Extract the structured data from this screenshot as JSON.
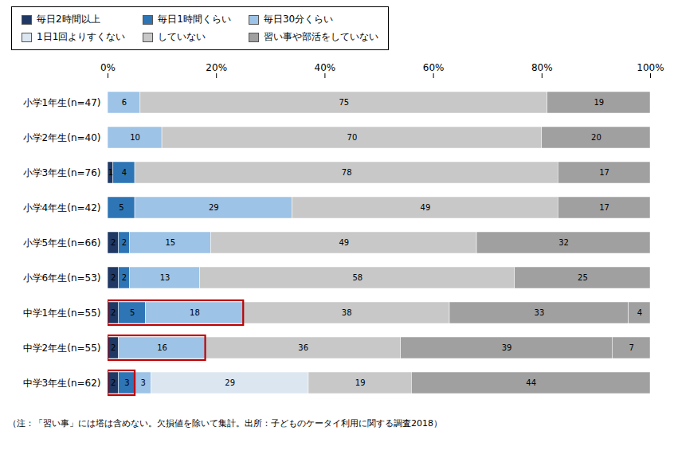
{
  "chart_data": {
    "type": "bar",
    "orientation": "horizontal",
    "stacked": true,
    "data_labels": true,
    "legend": "top",
    "grid": false,
    "categories": [
      "小学1年生(n=47)",
      "小学2年生(n=40)",
      "小学3年生(n=76)",
      "小学4年生(n=42)",
      "小学5年生(n=66)",
      "小学6年生(n=53)",
      "中学1年生(n=55)",
      "中学2年生(n=55)",
      "中学3年生(n=62)"
    ],
    "series": [
      {
        "name": "毎日2時間以上",
        "color": "#1f3864",
        "values": [
          0,
          0,
          1,
          0,
          2,
          2,
          2,
          2,
          2
        ]
      },
      {
        "name": "毎日1時間くらい",
        "color": "#2e75b6",
        "values": [
          0,
          0,
          4,
          5,
          2,
          2,
          5,
          0,
          3
        ]
      },
      {
        "name": "毎日30分くらい",
        "color": "#9dc3e6",
        "values": [
          6,
          10,
          0,
          29,
          15,
          13,
          18,
          16,
          3
        ]
      },
      {
        "name": "1日1回よりすくない",
        "color": "#dce6f1",
        "values": [
          0,
          0,
          0,
          0,
          0,
          0,
          0,
          0,
          29
        ]
      },
      {
        "name": "していない",
        "color": "#c8c8c8",
        "values": [
          75,
          70,
          78,
          49,
          49,
          58,
          38,
          36,
          19
        ]
      },
      {
        "name": "習い事や部活をしていない",
        "color": "#a0a0a0",
        "values": [
          19,
          20,
          17,
          17,
          32,
          25,
          33,
          39,
          0
        ]
      },
      {
        "color": "#a0a0a0",
        "values": [
          null,
          null,
          null,
          null,
          null,
          null,
          4,
          7,
          44
        ]
      }
    ],
    "xlim": [
      0,
      100
    ],
    "xticks": [
      {
        "value": 0,
        "label": "0%"
      },
      {
        "value": 20,
        "label": "20%"
      },
      {
        "value": 40,
        "label": "40%"
      },
      {
        "value": 60,
        "label": "60%"
      },
      {
        "value": 80,
        "label": "80%"
      },
      {
        "value": 100,
        "label": "100%"
      }
    ],
    "highlight": {
      "categories": [
        "中学1年生(n=55)",
        "中学2年生(n=55)",
        "中学3年生(n=62)"
      ],
      "values": [
        25,
        18,
        5
      ],
      "color": "#c00000"
    },
    "footnote": "（注：「習い事」には塔は含めない。欠損値を除いて集計。出所：子どものケータイ利用に関する調査2018）"
  }
}
